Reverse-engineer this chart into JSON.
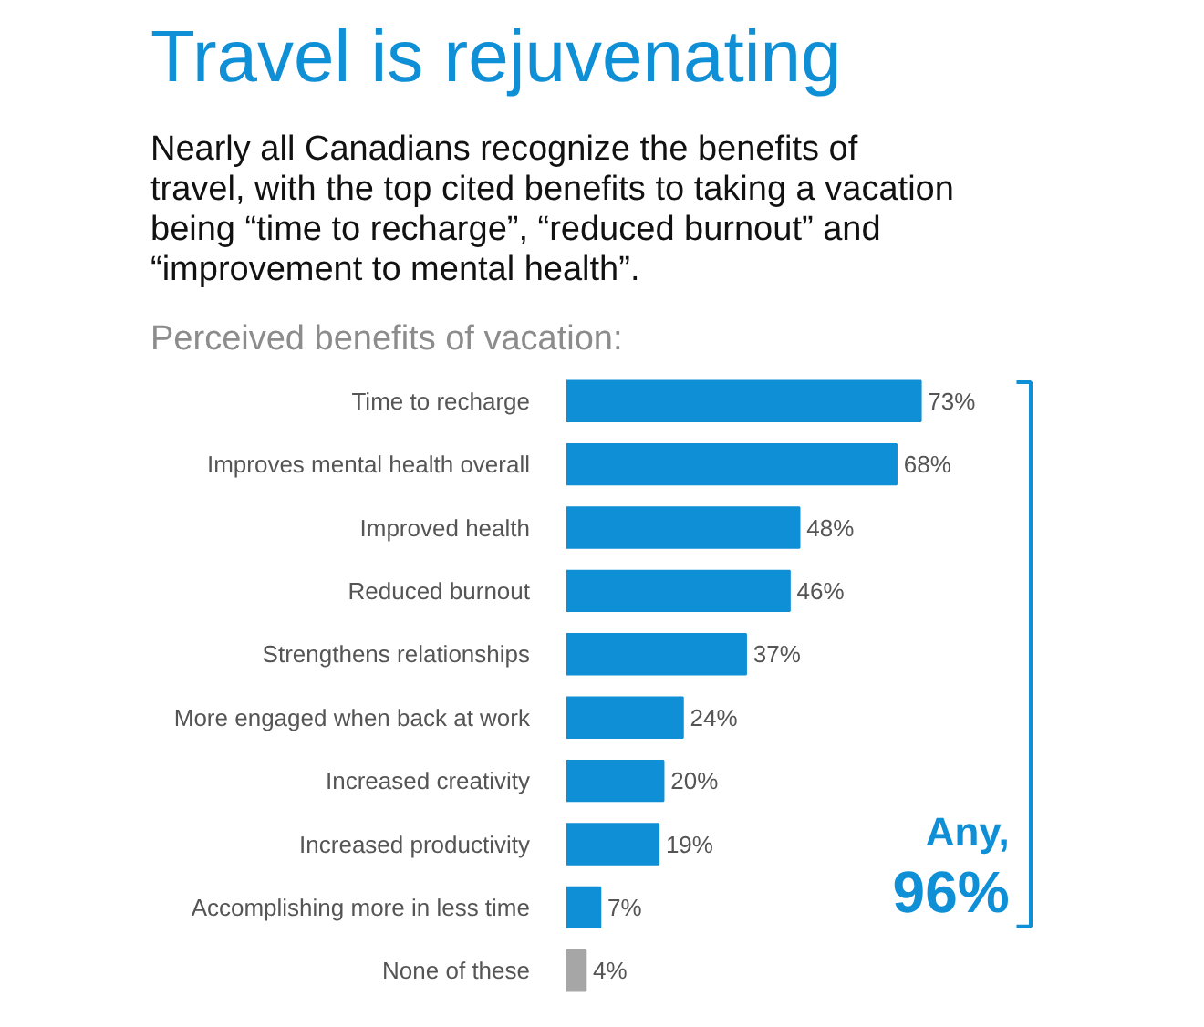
{
  "chart_data": {
    "type": "bar",
    "orientation": "horizontal",
    "title": "Travel is rejuvenating",
    "subtitle": "Nearly all Canadians recognize the benefits of\ntravel, with the top cited benefits to taking a vacation\nbeing “time to recharge”, “reduced burnout” and\n“improvement to mental health”.",
    "xlabel": "Perceived benefits of vacation:",
    "categories": [
      "Time to recharge",
      "Improves mental health overall",
      "Improved health",
      "Reduced burnout",
      "Strengthens relationships",
      "More engaged when back at work",
      "Increased creativity",
      "Increased productivity",
      "Accomplishing more in less time",
      "None of these"
    ],
    "values": [
      73,
      68,
      48,
      46,
      37,
      24,
      20,
      19,
      7,
      4
    ],
    "colors": [
      "#0f8fd6",
      "#0f8fd6",
      "#0f8fd6",
      "#0f8fd6",
      "#0f8fd6",
      "#0f8fd6",
      "#0f8fd6",
      "#0f8fd6",
      "#0f8fd6",
      "#a6a6a6"
    ],
    "value_labels": [
      "73%",
      "68%",
      "48%",
      "46%",
      "37%",
      "24%",
      "20%",
      "19%",
      "7%",
      "4%"
    ],
    "annotations": [
      "Any,",
      "96%"
    ],
    "grid": false
  }
}
